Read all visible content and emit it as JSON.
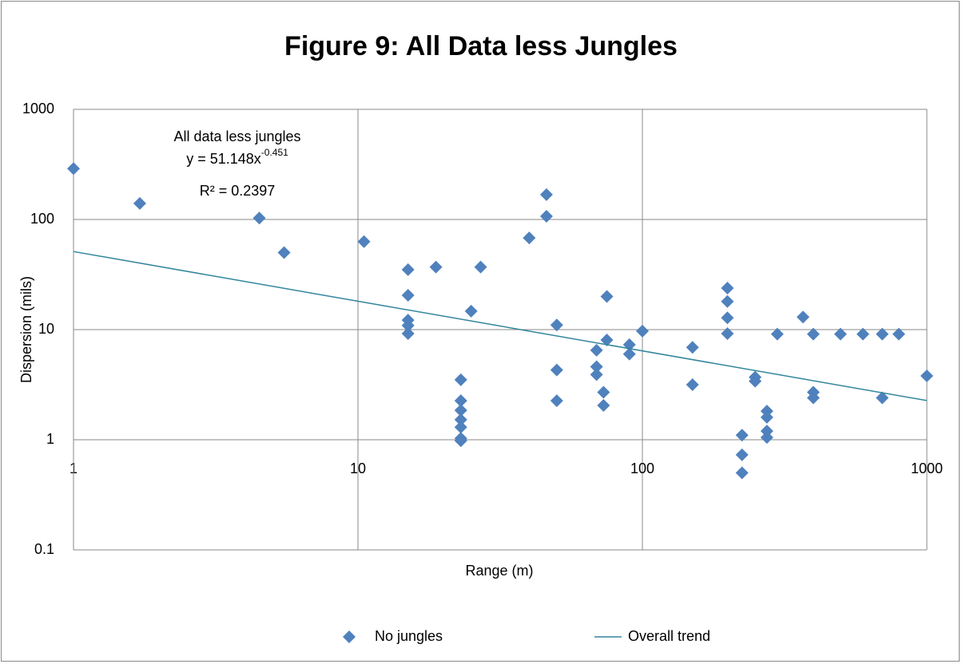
{
  "chart_data": {
    "type": "scatter",
    "title": "Figure 9: All Data less Jungles",
    "x_label": "Range (m)",
    "y_label": "Dispersion (mils)",
    "xlog": true,
    "ylog": true,
    "grid": true,
    "legend": "bottom",
    "xlim": [
      1,
      1000
    ],
    "ylim": [
      0.1,
      1000
    ],
    "xticks": [
      1,
      10,
      100,
      1000
    ],
    "yticks": [
      0.1,
      1,
      10,
      100,
      1000
    ],
    "annotations": [
      {
        "text": "All data less jungles"
      },
      {
        "text": "y = 51.148x",
        "superscript": "-0.451"
      },
      {
        "text": "R² = 0.2397"
      }
    ],
    "series": [
      {
        "name": "No jungles",
        "color": "#4f81bd",
        "mode": "markers",
        "x": [
          1,
          1.71,
          4.5,
          5.5,
          10.5,
          15,
          15,
          15,
          15,
          15,
          18.8,
          25,
          27,
          23,
          23,
          23,
          23,
          23,
          23,
          23,
          40,
          46,
          46,
          50,
          50,
          50,
          69,
          69,
          69,
          73,
          73,
          75,
          75,
          90,
          90,
          100,
          150,
          150,
          199,
          199,
          199,
          199,
          224,
          224,
          224,
          249,
          249,
          274,
          274,
          274,
          274,
          298,
          367,
          399,
          399,
          399,
          497,
          596,
          697,
          697,
          797,
          1000
        ],
        "values": [
          290,
          140,
          103,
          50,
          63,
          35,
          20.5,
          12.2,
          10.9,
          9.2,
          37,
          14.7,
          37,
          3.5,
          2.26,
          1.85,
          1.52,
          1.3,
          1.03,
          0.98,
          68,
          168,
          107,
          11,
          4.3,
          2.26,
          6.5,
          4.6,
          3.9,
          2.7,
          2.05,
          20,
          8.05,
          7.3,
          6,
          9.7,
          6.9,
          3.16,
          23.8,
          18,
          12.8,
          9.2,
          1.1,
          0.73,
          0.5,
          3.7,
          3.4,
          1.82,
          1.6,
          1.2,
          1.05,
          9.1,
          13,
          9.1,
          2.7,
          2.4,
          9.1,
          9.1,
          9.1,
          2.4,
          9.1,
          3.8
        ]
      },
      {
        "name": "Overall trend",
        "color": "#31859c",
        "mode": "line",
        "x": [
          1,
          1000
        ],
        "values": [
          51.148,
          2.269
        ]
      }
    ]
  }
}
